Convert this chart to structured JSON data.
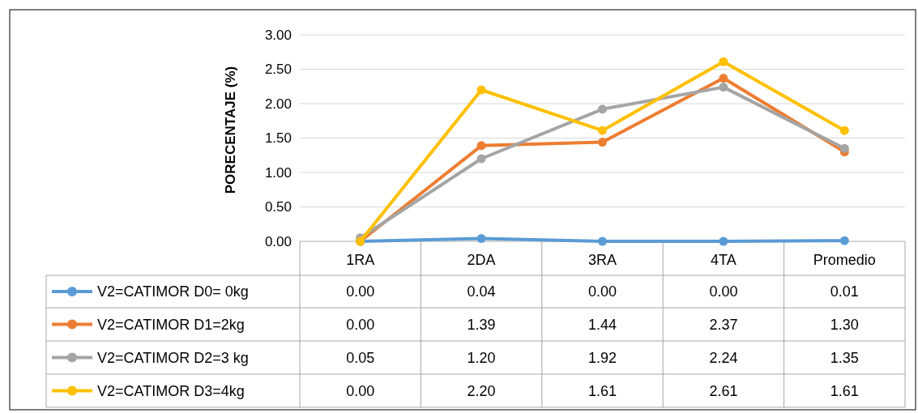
{
  "chart_data": {
    "type": "line",
    "ylabel": "PORECENTAJE (%)",
    "categories": [
      "1RA",
      "2DA",
      "3RA",
      "4TA",
      "Promedio"
    ],
    "series": [
      {
        "name": "V2=CATIMOR D0= 0kg",
        "color": "#5b9bd5",
        "values": [
          0.0,
          0.04,
          0.0,
          0.0,
          0.01
        ],
        "value_labels": [
          "0.00",
          "0.04",
          "0.00",
          "0.00",
          "0.01"
        ]
      },
      {
        "name": "V2=CATIMOR D1=2kg",
        "color": "#ed7d31",
        "values": [
          0.0,
          1.39,
          1.44,
          2.37,
          1.3
        ],
        "value_labels": [
          "0.00",
          "1.39",
          "1.44",
          "2.37",
          "1.30"
        ]
      },
      {
        "name": "V2=CATIMOR D2=3 kg",
        "color": "#a5a5a5",
        "values": [
          0.05,
          1.2,
          1.92,
          2.24,
          1.35
        ],
        "value_labels": [
          "0.05",
          "1.20",
          "1.92",
          "2.24",
          "1.35"
        ]
      },
      {
        "name": "V2=CATIMOR D3=4kg",
        "color": "#ffc000",
        "values": [
          0.0,
          2.2,
          1.61,
          2.61,
          1.61
        ],
        "value_labels": [
          "0.00",
          "2.20",
          "1.61",
          "2.61",
          "1.61"
        ]
      }
    ],
    "ylim": [
      0,
      3
    ],
    "yticks": [
      {
        "value": 0,
        "label": "0.00"
      },
      {
        "value": 0.5,
        "label": "0.50"
      },
      {
        "value": 1,
        "label": "1.00"
      },
      {
        "value": 1.5,
        "label": "1.50"
      },
      {
        "value": 2,
        "label": "2.00"
      },
      {
        "value": 2.5,
        "label": "2.50"
      },
      {
        "value": 3,
        "label": "3.00"
      }
    ],
    "grid": "y",
    "marker": "circle",
    "line_style": "solid",
    "legend": "bottom"
  }
}
